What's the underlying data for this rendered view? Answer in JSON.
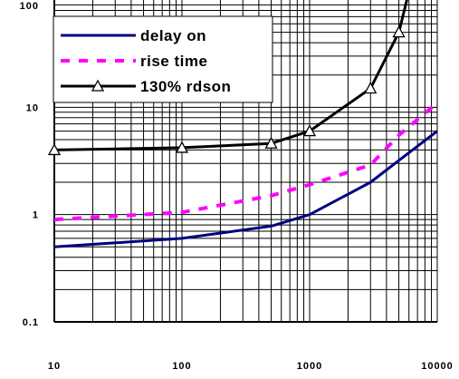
{
  "chart_data": {
    "type": "line",
    "x_scale": "log",
    "y_scale": "log",
    "xlim": [
      10,
      10000
    ],
    "ylim": [
      0.1,
      100
    ],
    "grid": true,
    "legend_position": "top-left",
    "x_tick_labels": [
      "10",
      "100",
      "1000",
      "10000"
    ],
    "y_tick_labels": [
      "0.1",
      "1",
      "10",
      "100"
    ],
    "series": [
      {
        "name": "delay on",
        "color": "#000080",
        "style": "solid",
        "marker": "none",
        "points": [
          [
            10,
            0.5
          ],
          [
            100,
            0.6
          ],
          [
            500,
            0.78
          ],
          [
            1000,
            1.0
          ],
          [
            3000,
            2.0
          ],
          [
            5000,
            3.2
          ],
          [
            10000,
            6.0
          ]
        ]
      },
      {
        "name": "rise time",
        "color": "#ff00ff",
        "style": "dashed",
        "marker": "none",
        "points": [
          [
            10,
            0.9
          ],
          [
            100,
            1.05
          ],
          [
            500,
            1.5
          ],
          [
            1000,
            1.9
          ],
          [
            3000,
            2.9
          ],
          [
            5000,
            5.5
          ],
          [
            10000,
            11.0
          ]
        ]
      },
      {
        "name": "130% rdson",
        "color": "#000000",
        "style": "solid",
        "marker": "triangle",
        "points": [
          [
            10,
            4.0
          ],
          [
            100,
            4.2
          ],
          [
            500,
            4.6
          ],
          [
            1000,
            6.0
          ],
          [
            3000,
            15.0
          ],
          [
            5000,
            50.0
          ],
          [
            6000,
            120.0
          ]
        ],
        "marker_points": [
          [
            10,
            4.0
          ],
          [
            100,
            4.2
          ],
          [
            500,
            4.6
          ],
          [
            1000,
            6.0
          ],
          [
            3000,
            15.0
          ],
          [
            5000,
            50.0
          ]
        ]
      }
    ]
  }
}
